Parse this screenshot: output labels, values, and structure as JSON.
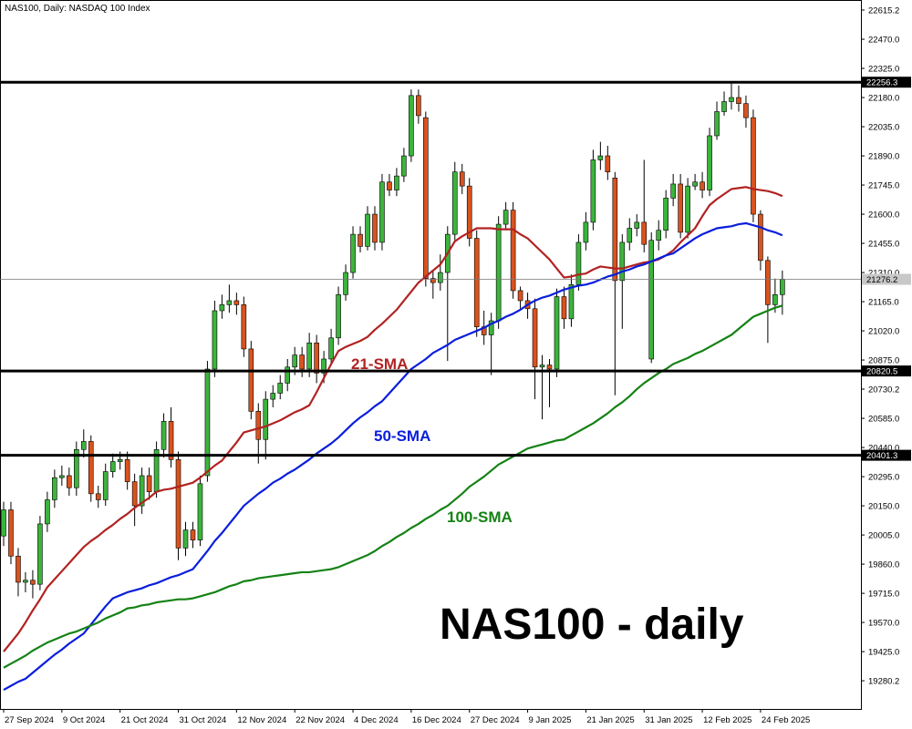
{
  "chart_data": {
    "type": "candlestick",
    "title": "NAS100, Daily: NASDAQ 100 Index",
    "annotations": [
      "NAS100 - daily"
    ],
    "categories": [
      "27 Sep 2024",
      null,
      null,
      null,
      null,
      null,
      null,
      null,
      "9 Oct 2024",
      null,
      null,
      null,
      null,
      null,
      null,
      null,
      "21 Oct 2024",
      null,
      null,
      null,
      null,
      null,
      null,
      null,
      "31 Oct 2024",
      null,
      null,
      null,
      null,
      null,
      null,
      null,
      "12 Nov 2024",
      null,
      null,
      null,
      null,
      null,
      null,
      null,
      "22 Nov 2024",
      null,
      null,
      null,
      null,
      null,
      null,
      null,
      "4 Dec 2024",
      null,
      null,
      null,
      null,
      null,
      null,
      null,
      "16 Dec 2024",
      null,
      null,
      null,
      null,
      null,
      null,
      null,
      "27 Dec 2024",
      null,
      null,
      null,
      null,
      null,
      null,
      null,
      "9 Jan 2025",
      null,
      null,
      null,
      null,
      null,
      null,
      null,
      "21 Jan 2025",
      null,
      null,
      null,
      null,
      null,
      null,
      null,
      "31 Jan 2025",
      null,
      null,
      null,
      null,
      null,
      null,
      null,
      "12 Feb 2025",
      null,
      null,
      null,
      null,
      null,
      null,
      null,
      "24 Feb 2025",
      null,
      null,
      null
    ],
    "open": [
      20000,
      20130,
      19900,
      19770,
      19780,
      19760,
      20060,
      20180,
      20290,
      20300,
      20240,
      20430,
      20470,
      20210,
      20180,
      20320,
      20370,
      20380,
      20270,
      20150,
      20300,
      20220,
      20430,
      20570,
      20380,
      19940,
      20030,
      19980,
      20300,
      20830,
      21120,
      21150,
      21170,
      21150,
      20930,
      20620,
      20480,
      20680,
      20710,
      20760,
      20840,
      20900,
      20830,
      20960,
      20810,
      20880,
      20985,
      21200,
      21310,
      21500,
      21440,
      21600,
      21460,
      21760,
      21720,
      21790,
      21890,
      22190,
      22080,
      21280,
      21260,
      21310,
      21500,
      21810,
      21740,
      21480,
      21040,
      21000,
      21070,
      21550,
      21620,
      21220,
      21170,
      21130,
      20840,
      20850,
      20830,
      21190,
      21080,
      21250,
      21460,
      21560,
      21870,
      21890,
      21780,
      21270,
      21460,
      21530,
      21560,
      20880,
      21470,
      21520,
      21680,
      21750,
      21510,
      21740,
      21760,
      21720,
      21990,
      22110,
      22160,
      22180,
      22150,
      22080,
      21600,
      21370,
      21150,
      21200
    ],
    "high": [
      20170,
      20170,
      19940,
      19820,
      19830,
      20100,
      20220,
      20330,
      20350,
      20340,
      20470,
      20530,
      20500,
      20250,
      20360,
      20410,
      20420,
      20420,
      20310,
      20340,
      20340,
      20470,
      20610,
      20640,
      20420,
      20070,
      20070,
      20300,
      20870,
      21170,
      21200,
      21250,
      21210,
      21190,
      20970,
      20660,
      20720,
      20750,
      20800,
      20880,
      20940,
      20940,
      21010,
      21000,
      20920,
      21030,
      21240,
      21350,
      21540,
      21540,
      21640,
      21640,
      21800,
      21800,
      21830,
      21930,
      22220,
      22220,
      22110,
      21320,
      21400,
      21540,
      21860,
      21850,
      21780,
      21520,
      21120,
      21110,
      21590,
      21660,
      21660,
      21240,
      21210,
      21180,
      20900,
      20880,
      21230,
      21240,
      21300,
      21500,
      21610,
      21920,
      21960,
      21940,
      21810,
      21500,
      21580,
      21600,
      21870,
      21510,
      21570,
      21720,
      21800,
      21800,
      21780,
      21800,
      21810,
      22030,
      22160,
      22210,
      22250,
      22240,
      22190,
      22120,
      21620,
      21390,
      21280,
      21320
    ],
    "low": [
      19950,
      19860,
      19700,
      19720,
      19690,
      19730,
      20020,
      20140,
      20250,
      20200,
      20200,
      20390,
      20170,
      20140,
      20150,
      20290,
      20330,
      20230,
      20050,
      20110,
      20180,
      20190,
      20390,
      20340,
      19880,
      19900,
      19940,
      19950,
      20270,
      20790,
      21080,
      21110,
      21100,
      20890,
      20580,
      20360,
      20380,
      20640,
      20680,
      20720,
      20800,
      20790,
      20790,
      20760,
      20760,
      20850,
      20950,
      21170,
      21280,
      21410,
      21420,
      21420,
      21420,
      21690,
      21690,
      21760,
      21860,
      22050,
      21240,
      21180,
      21220,
      20870,
      21470,
      21700,
      21440,
      20990,
      20950,
      20800,
      21030,
      21520,
      21180,
      21130,
      21080,
      20680,
      20580,
      20640,
      20790,
      21030,
      21040,
      21220,
      21420,
      21520,
      21820,
      21770,
      20700,
      21030,
      21420,
      21490,
      21410,
      20860,
      21420,
      21480,
      21640,
      21480,
      21480,
      21720,
      21680,
      21690,
      21970,
      22090,
      22120,
      22110,
      22030,
      21560,
      21320,
      20960,
      21110,
      21100
    ],
    "close": [
      20130,
      19900,
      19770,
      19780,
      19760,
      20060,
      20180,
      20290,
      20300,
      20240,
      20430,
      20470,
      20210,
      20180,
      20320,
      20370,
      20380,
      20270,
      20150,
      20300,
      20220,
      20430,
      20570,
      20380,
      19940,
      20030,
      19980,
      20260,
      20830,
      21120,
      21150,
      21170,
      21150,
      20930,
      20620,
      20480,
      20680,
      20710,
      20760,
      20840,
      20900,
      20830,
      20960,
      20810,
      20880,
      20985,
      21200,
      21310,
      21500,
      21440,
      21600,
      21460,
      21760,
      21720,
      21790,
      21890,
      22190,
      22090,
      21280,
      21260,
      21310,
      21500,
      21810,
      21740,
      21480,
      21040,
      21000,
      21070,
      21550,
      21620,
      21220,
      21170,
      21130,
      20840,
      20850,
      20830,
      21190,
      21080,
      21250,
      21460,
      21560,
      21870,
      21890,
      21810,
      21270,
      21460,
      21530,
      21560,
      21450,
      21470,
      21520,
      21680,
      21750,
      21510,
      21740,
      21760,
      21720,
      21990,
      22110,
      22160,
      22180,
      22150,
      22080,
      21600,
      21370,
      21150,
      21200,
      21276.2
    ],
    "up_color": "#3cb43c",
    "down_color": "#d9531e",
    "lines": [
      {
        "name": "21-SMA",
        "color": "#b22222",
        "values": [
          19425,
          19470,
          19515,
          19570,
          19630,
          19685,
          19745,
          19785,
          19825,
          19865,
          19905,
          19945,
          19975,
          20000,
          20030,
          20055,
          20085,
          20110,
          20140,
          20165,
          20190,
          20220,
          20230,
          20235,
          20245,
          20255,
          20265,
          20290,
          20320,
          20350,
          20375,
          20420,
          20465,
          20515,
          20525,
          20535,
          20545,
          20560,
          20575,
          20595,
          20615,
          20630,
          20650,
          20715,
          20785,
          20855,
          20920,
          20940,
          20955,
          20970,
          20990,
          21025,
          21055,
          21090,
          21125,
          21170,
          21215,
          21260,
          21290,
          21320,
          21350,
          21405,
          21465,
          21490,
          21510,
          21530,
          21530,
          21530,
          21525,
          21525,
          21525,
          21500,
          21480,
          21445,
          21410,
          21375,
          21330,
          21285,
          21290,
          21300,
          21305,
          21325,
          21340,
          21335,
          21330,
          21330,
          21340,
          21350,
          21360,
          21365,
          21375,
          21395,
          21420,
          21460,
          21495,
          21530,
          21590,
          21645,
          21675,
          21700,
          21725,
          21730,
          21735,
          21725,
          21720,
          21715,
          21705,
          21690
        ]
      },
      {
        "name": "50-SMA",
        "color": "#0a1edc",
        "values": [
          19235,
          19255,
          19275,
          19290,
          19320,
          19350,
          19380,
          19410,
          19435,
          19465,
          19490,
          19515,
          19560,
          19605,
          19650,
          19690,
          19705,
          19720,
          19730,
          19740,
          19755,
          19765,
          19780,
          19795,
          19805,
          19820,
          19835,
          19880,
          19925,
          19975,
          20015,
          20060,
          20105,
          20150,
          20180,
          20210,
          20235,
          20265,
          20285,
          20310,
          20330,
          20355,
          20380,
          20410,
          20435,
          20460,
          20490,
          20525,
          20560,
          20590,
          20615,
          20645,
          20670,
          20710,
          20750,
          20790,
          20830,
          20855,
          20880,
          20910,
          20930,
          20950,
          20975,
          20990,
          21005,
          21020,
          21035,
          21055,
          21070,
          21090,
          21105,
          21125,
          21150,
          21170,
          21185,
          21195,
          21210,
          21225,
          21235,
          21245,
          21250,
          21260,
          21275,
          21290,
          21300,
          21315,
          21325,
          21340,
          21350,
          21365,
          21380,
          21395,
          21405,
          21430,
          21455,
          21480,
          21500,
          21515,
          21530,
          21535,
          21540,
          21550,
          21555,
          21545,
          21535,
          21520,
          21510,
          21495
        ]
      },
      {
        "name": "100-SMA",
        "color": "#148214",
        "values": [
          19345,
          19365,
          19385,
          19405,
          19430,
          19450,
          19470,
          19485,
          19500,
          19515,
          19525,
          19540,
          19555,
          19570,
          19590,
          19605,
          19620,
          19640,
          19645,
          19655,
          19660,
          19670,
          19675,
          19680,
          19685,
          19685,
          19690,
          19700,
          19710,
          19720,
          19735,
          19750,
          19760,
          19775,
          19780,
          19790,
          19795,
          19800,
          19805,
          19810,
          19815,
          19820,
          19820,
          19825,
          19830,
          19835,
          19845,
          19860,
          19875,
          19890,
          19905,
          19925,
          19950,
          19970,
          19995,
          20015,
          20040,
          20060,
          20085,
          20105,
          20130,
          20150,
          20180,
          20210,
          20245,
          20270,
          20295,
          20325,
          20355,
          20375,
          20395,
          20415,
          20435,
          20445,
          20455,
          20465,
          20475,
          20480,
          20500,
          20520,
          20540,
          20560,
          20585,
          20610,
          20640,
          20665,
          20695,
          20730,
          20760,
          20785,
          20810,
          20830,
          20855,
          20870,
          20885,
          20905,
          20920,
          20940,
          20960,
          20980,
          21000,
          21030,
          21060,
          21090,
          21105,
          21120,
          21135,
          21145
        ]
      }
    ],
    "levels": [
      22256.3,
      20820.5,
      20401.3
    ],
    "ylim": [
      19140,
      22665
    ],
    "yticks": [
      22615.2,
      {
        "value": 22470,
        "label": "22470.0"
      },
      {
        "value": 22325,
        "label": "22325.0"
      },
      {
        "value": 22180,
        "label": "22180.0"
      },
      {
        "value": 22035,
        "label": "22035.0"
      },
      {
        "value": 21890,
        "label": "21890.0"
      },
      {
        "value": 21745,
        "label": "21745.0"
      },
      {
        "value": 21600,
        "label": "21600.0"
      },
      {
        "value": 21455,
        "label": "21455.0"
      },
      {
        "value": 21310,
        "label": "21310.0"
      },
      {
        "value": 21165,
        "label": "21165.0"
      },
      {
        "value": 21020,
        "label": "21020.0"
      },
      {
        "value": 20875,
        "label": "20875.0"
      },
      20730.2,
      {
        "value": 20585,
        "label": "20585.0"
      },
      {
        "value": 20440,
        "label": "20440.0"
      },
      {
        "value": 20295,
        "label": "20295.0"
      },
      {
        "value": 20150,
        "label": "20150.0"
      },
      {
        "value": 20005,
        "label": "20005.0"
      },
      {
        "value": 19860,
        "label": "19860.0"
      },
      {
        "value": 19715,
        "label": "19715.0"
      },
      {
        "value": 19570,
        "label": "19570.0"
      },
      {
        "value": 19425,
        "label": "19425.0"
      },
      19280.2
    ],
    "grid": false
  }
}
